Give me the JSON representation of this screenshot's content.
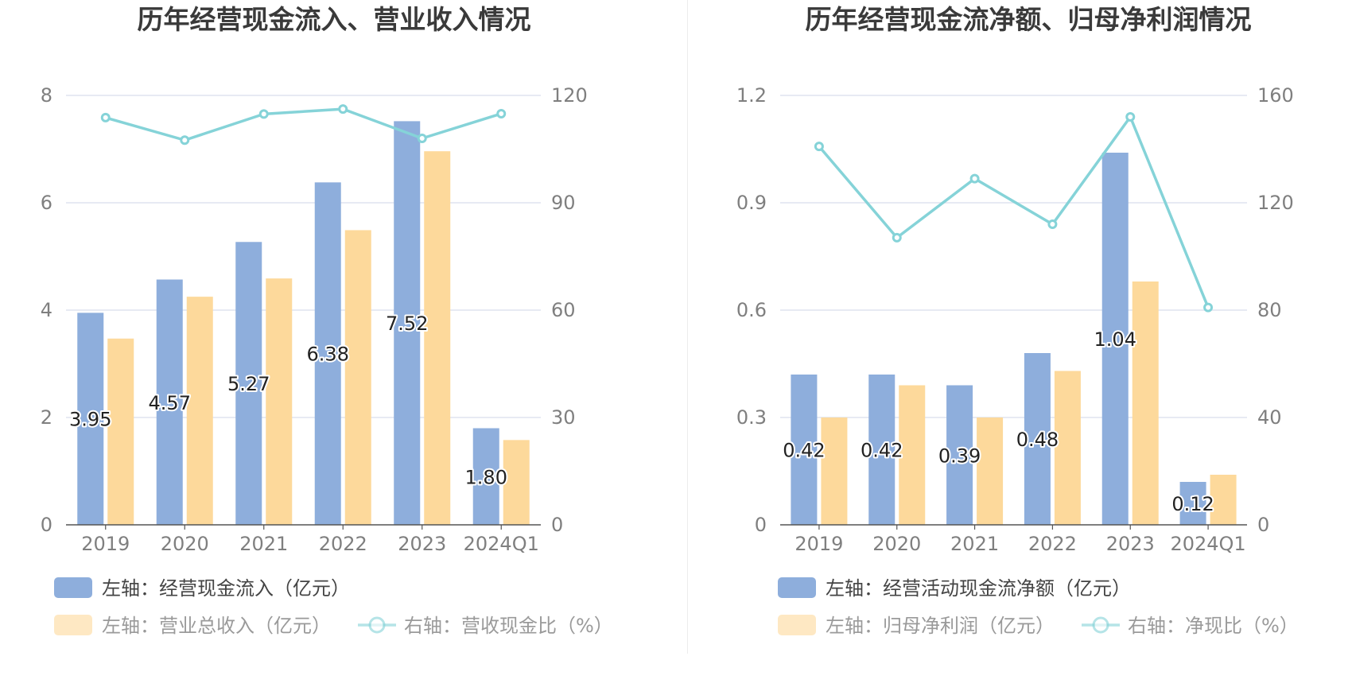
{
  "colors": {
    "bar_primary": "#8eaedc",
    "bar_secondary": "#fdd99b",
    "line": "#85d3d8",
    "grid": "#dfe3ef",
    "axis": "#555555"
  },
  "chart_data": [
    {
      "type": "bar",
      "title": "历年经营现金流入、营业收入情况",
      "categories": [
        "2019",
        "2020",
        "2021",
        "2022",
        "2023",
        "2024Q1"
      ],
      "left_axis": {
        "ylim": [
          0,
          8
        ],
        "ticks": [
          "0",
          "2",
          "4",
          "6",
          "8"
        ]
      },
      "right_axis": {
        "ylim": [
          0,
          120
        ],
        "ticks": [
          "0",
          "30",
          "60",
          "90",
          "120"
        ]
      },
      "series": [
        {
          "name": "左轴：经营现金流入（亿元）",
          "axis": "left",
          "kind": "bar",
          "values": [
            3.95,
            4.57,
            5.27,
            6.38,
            7.52,
            1.8
          ],
          "labels": [
            "3.95",
            "4.57",
            "5.27",
            "6.38",
            "7.52",
            "1.80"
          ]
        },
        {
          "name": "左轴：营业总收入（亿元）",
          "axis": "left",
          "kind": "bar",
          "values": [
            3.47,
            4.25,
            4.59,
            5.49,
            6.96,
            1.58
          ]
        },
        {
          "name": "右轴：营收现金比（%）",
          "axis": "right",
          "kind": "line",
          "values": [
            113.8,
            107.5,
            114.8,
            116.2,
            108.0,
            114.9
          ]
        }
      ],
      "legend": [
        "左轴：经营现金流入（亿元）",
        "左轴：营业总收入（亿元）",
        "右轴：营收现金比（%）"
      ],
      "legend_position": "bottom",
      "grid": true
    },
    {
      "type": "bar",
      "title": "历年经营现金流净额、归母净利润情况",
      "categories": [
        "2019",
        "2020",
        "2021",
        "2022",
        "2023",
        "2024Q1"
      ],
      "left_axis": {
        "ylim": [
          0,
          1.2
        ],
        "ticks": [
          "0",
          "0.3",
          "0.6",
          "0.9",
          "1.2"
        ]
      },
      "right_axis": {
        "ylim": [
          0,
          160
        ],
        "ticks": [
          "0",
          "40",
          "80",
          "120",
          "160"
        ]
      },
      "series": [
        {
          "name": "左轴：经营活动现金流净额（亿元）",
          "axis": "left",
          "kind": "bar",
          "values": [
            0.42,
            0.42,
            0.39,
            0.48,
            1.04,
            0.12
          ],
          "labels": [
            "0.42",
            "0.42",
            "0.39",
            "0.48",
            "1.04",
            "0.12"
          ]
        },
        {
          "name": "左轴：归母净利润（亿元）",
          "axis": "left",
          "kind": "bar",
          "values": [
            0.3,
            0.39,
            0.3,
            0.43,
            0.68,
            0.14
          ]
        },
        {
          "name": "右轴：净现比（%）",
          "axis": "right",
          "kind": "line",
          "values": [
            141,
            107,
            129,
            112,
            152,
            81
          ]
        }
      ],
      "legend": [
        "左轴：经营活动现金流净额（亿元）",
        "左轴：归母净利润（亿元）",
        "右轴：净现比（%）"
      ],
      "legend_position": "bottom",
      "grid": true
    }
  ]
}
